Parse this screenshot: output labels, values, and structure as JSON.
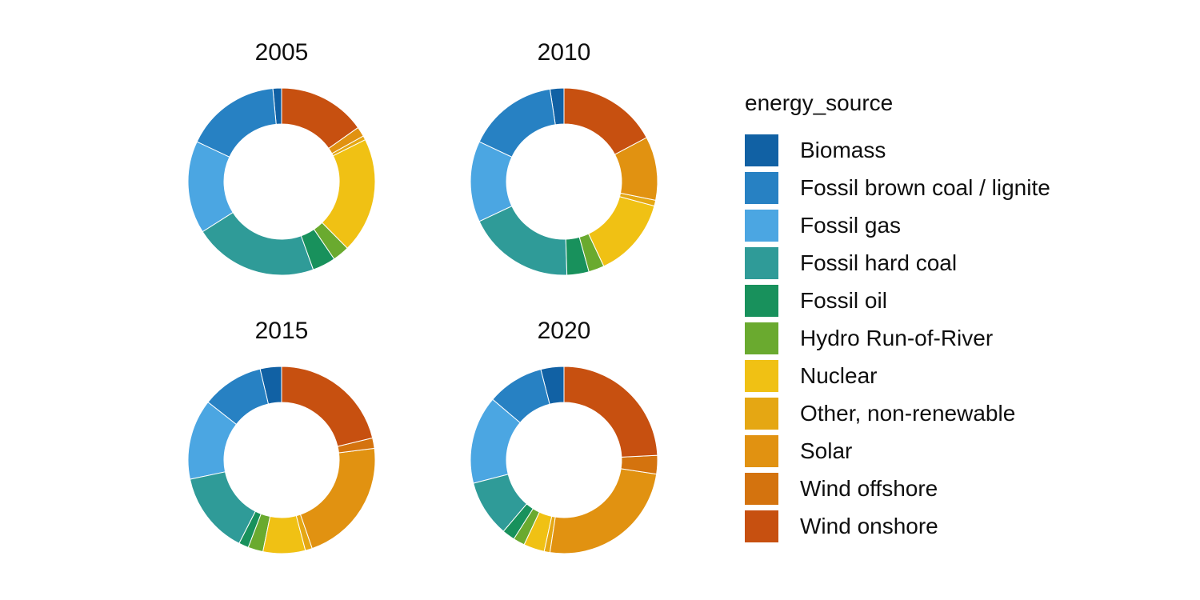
{
  "chart_data": {
    "type": "pie",
    "subtype": "faceted-donut",
    "legend_title": "energy_source",
    "legend_position": "right",
    "background": "#ffffff",
    "grid": false,
    "start_angle_deg": 0,
    "direction": "counterclockwise",
    "inner_radius_ratio": 0.615,
    "categories": [
      "Biomass",
      "Fossil brown coal / lignite",
      "Fossil gas",
      "Fossil hard coal",
      "Fossil oil",
      "Hydro Run-of-River",
      "Nuclear",
      "Other, non-renewable",
      "Solar",
      "Wind offshore",
      "Wind onshore"
    ],
    "colors": [
      "#1161a4",
      "#2781c3",
      "#4ba6e2",
      "#2f9b98",
      "#18915c",
      "#6aaa2f",
      "#f0c114",
      "#e5a713",
      "#e19211",
      "#d4730e",
      "#c75010"
    ],
    "facets": [
      {
        "label": "2005",
        "values_percent": [
          1.5,
          16.5,
          16.0,
          21.5,
          4.0,
          2.9,
          20.0,
          0.7,
          1.7,
          0.0,
          15.2
        ]
      },
      {
        "label": "2010",
        "values_percent": [
          2.4,
          15.6,
          14.0,
          18.5,
          3.8,
          2.7,
          13.8,
          1.0,
          11.0,
          0.0,
          17.2
        ]
      },
      {
        "label": "2015",
        "values_percent": [
          3.7,
          10.7,
          13.9,
          14.2,
          1.7,
          2.6,
          7.3,
          1.2,
          21.7,
          1.8,
          21.2
        ]
      },
      {
        "label": "2020",
        "values_percent": [
          4.0,
          9.8,
          15.2,
          9.8,
          2.2,
          2.0,
          3.6,
          1.0,
          25.0,
          3.2,
          24.2
        ]
      }
    ]
  }
}
